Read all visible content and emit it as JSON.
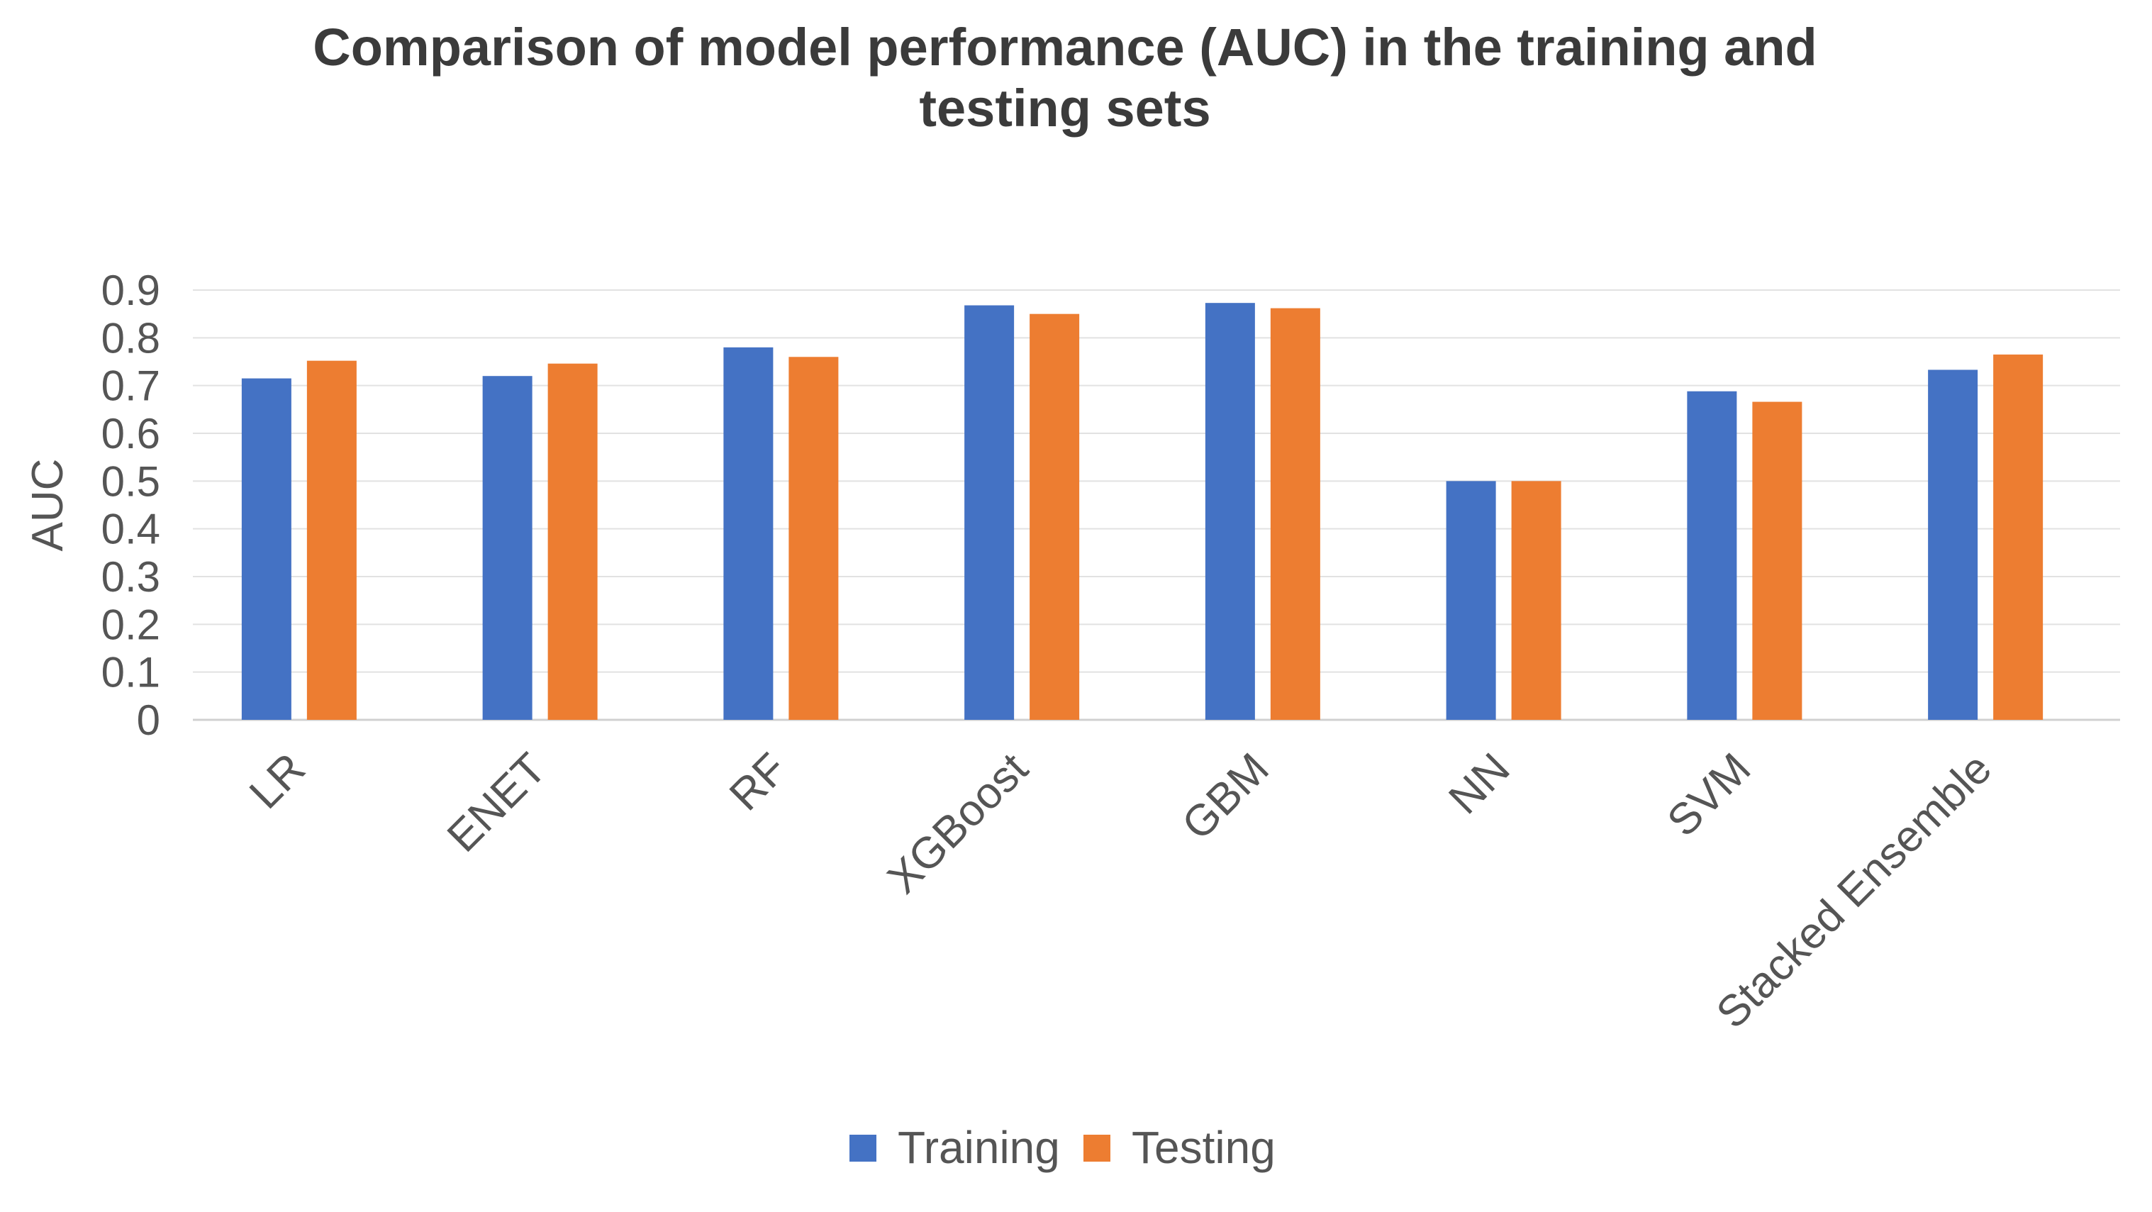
{
  "chart_data": {
    "type": "bar",
    "title": "Comparison of model performance (AUC) in the training and testing sets",
    "title_lines": [
      "Comparison of model performance (AUC) in the training and",
      "testing sets"
    ],
    "xlabel": "",
    "ylabel": "AUC",
    "ylim": [
      0,
      0.9
    ],
    "yticks": [
      "0",
      "0.1",
      "0.2",
      "0.3",
      "0.4",
      "0.5",
      "0.6",
      "0.7",
      "0.8",
      "0.9"
    ],
    "ytick_values": [
      0,
      0.1,
      0.2,
      0.3,
      0.4,
      0.5,
      0.6,
      0.7,
      0.8,
      0.9
    ],
    "grid": true,
    "legend_position": "bottom",
    "categories": [
      "LR",
      "ENET",
      "RF",
      "XGBoost",
      "GBM",
      "NN",
      "SVM",
      "Stacked Ensemble"
    ],
    "series": [
      {
        "name": "Training",
        "color": "#4472c4",
        "values": [
          0.715,
          0.72,
          0.78,
          0.868,
          0.873,
          0.5,
          0.688,
          0.733
        ]
      },
      {
        "name": "Testing",
        "color": "#ed7d31",
        "values": [
          0.752,
          0.746,
          0.76,
          0.85,
          0.862,
          0.5,
          0.666,
          0.765
        ]
      }
    ]
  }
}
